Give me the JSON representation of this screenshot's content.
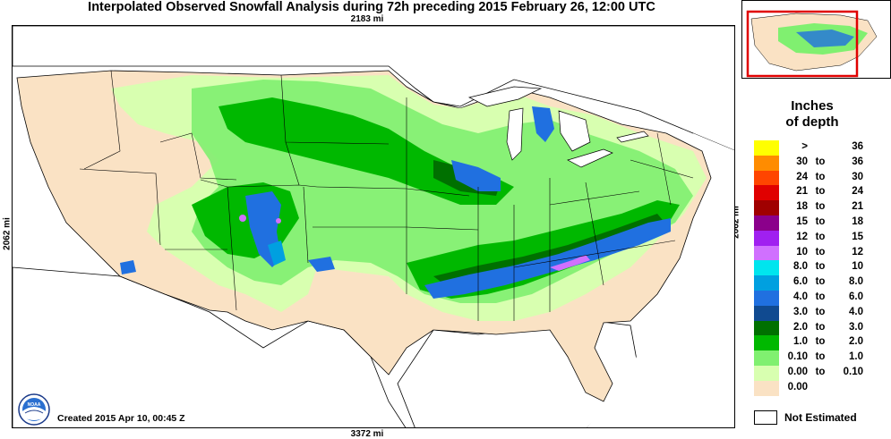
{
  "title": "Interpolated Observed Snowfall Analysis during 72h preceding 2015 February 26, 12:00 UTC",
  "map": {
    "width_label": "2183 mi",
    "bottom_width_label": "3372 mi",
    "height_label_left": "2062 mi",
    "height_label_right": "2062 mi",
    "created_text": "Created 2015 Apr 10, 00:45 Z",
    "logo": "noaa-logo"
  },
  "legend": {
    "title_line1": "Inches",
    "title_line2": "of depth",
    "rows": [
      {
        "lo": ">",
        "to": "",
        "hi": "36",
        "color": "#ffff00"
      },
      {
        "lo": "30",
        "to": "to",
        "hi": "36",
        "color": "#ff8c00"
      },
      {
        "lo": "24",
        "to": "to",
        "hi": "30",
        "color": "#ff4500"
      },
      {
        "lo": "21",
        "to": "to",
        "hi": "24",
        "color": "#e00000"
      },
      {
        "lo": "18",
        "to": "to",
        "hi": "21",
        "color": "#a00000"
      },
      {
        "lo": "15",
        "to": "to",
        "hi": "18",
        "color": "#8b008b"
      },
      {
        "lo": "12",
        "to": "to",
        "hi": "15",
        "color": "#a020f0"
      },
      {
        "lo": "10",
        "to": "to",
        "hi": "12",
        "color": "#d070ff"
      },
      {
        "lo": "8.0",
        "to": "to",
        "hi": "10",
        "color": "#00e5ee"
      },
      {
        "lo": "6.0",
        "to": "to",
        "hi": "8.0",
        "color": "#00a0e0"
      },
      {
        "lo": "4.0",
        "to": "to",
        "hi": "6.0",
        "color": "#2070e0"
      },
      {
        "lo": "3.0",
        "to": "to",
        "hi": "4.0",
        "color": "#104a90"
      },
      {
        "lo": "2.0",
        "to": "to",
        "hi": "3.0",
        "color": "#007000"
      },
      {
        "lo": "1.0",
        "to": "to",
        "hi": "2.0",
        "color": "#00b800"
      },
      {
        "lo": "0.10",
        "to": "to",
        "hi": "1.0",
        "color": "#80f070"
      },
      {
        "lo": "0.00",
        "to": "to",
        "hi": "0.10",
        "color": "#d8ffb0"
      },
      {
        "lo": "0.00",
        "to": "",
        "hi": "",
        "color": "#fae2c4"
      }
    ],
    "not_estimated_label": "Not Estimated"
  }
}
